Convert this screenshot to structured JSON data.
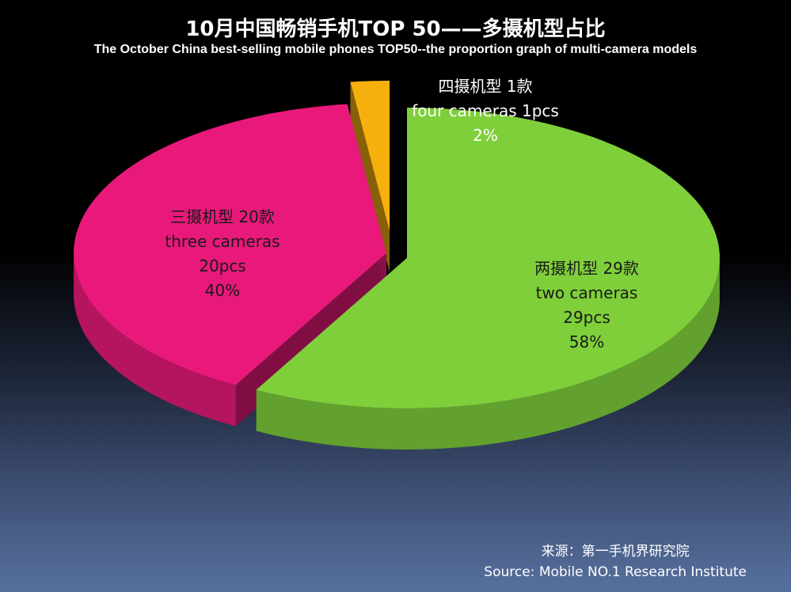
{
  "chart_data": {
    "type": "pie",
    "title": "10月中国畅销手机TOP 50——多摄机型占比",
    "subtitle": "The October China best-selling mobile phones TOP50--the proportion graph of multi-camera models",
    "slices": [
      {
        "label_cn": "两摄机型 29款",
        "label_en": "two cameras",
        "count": "29pcs",
        "percent_label": "58%",
        "value": 29,
        "color": "#7ecf3a"
      },
      {
        "label_cn": "三摄机型 20款",
        "label_en": "three cameras",
        "count": "20pcs",
        "percent_label": "40%",
        "value": 20,
        "color": "#e8197a"
      },
      {
        "label_cn": "四摄机型 1款",
        "label_en": "four cameras  1pcs",
        "count": "",
        "percent_label": "2%",
        "value": 1,
        "color": "#f5b00e"
      }
    ],
    "legend": "none",
    "exploded": true,
    "style": "3d"
  },
  "source": {
    "cn": "来源：第一手机界研究院",
    "en": "Source: Mobile NO.1 Research Institute"
  }
}
